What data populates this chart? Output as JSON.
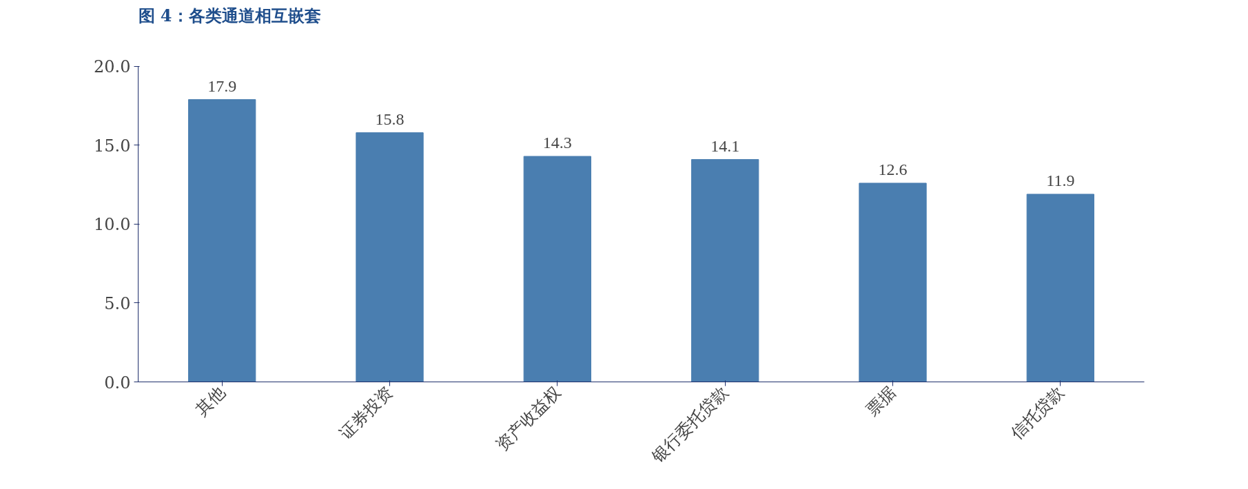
{
  "chart_data": {
    "type": "bar",
    "title": "图 4：各类通道相互嵌套",
    "categories": [
      "其他",
      "证券投资",
      "资产收益权",
      "银行委托贷款",
      "票据",
      "信托贷款"
    ],
    "values": [
      17.9,
      15.8,
      14.3,
      14.1,
      12.6,
      11.9
    ],
    "color": "#4a7eb0",
    "ylim": [
      0,
      20
    ],
    "yticks": [
      {
        "value": 0,
        "label": "0.0"
      },
      {
        "value": 5,
        "label": "5.0"
      },
      {
        "value": 10,
        "label": "10.0"
      },
      {
        "value": 15,
        "label": "15.0"
      },
      {
        "value": 20,
        "label": "20.0"
      }
    ],
    "grid": false,
    "data_labels": true
  }
}
